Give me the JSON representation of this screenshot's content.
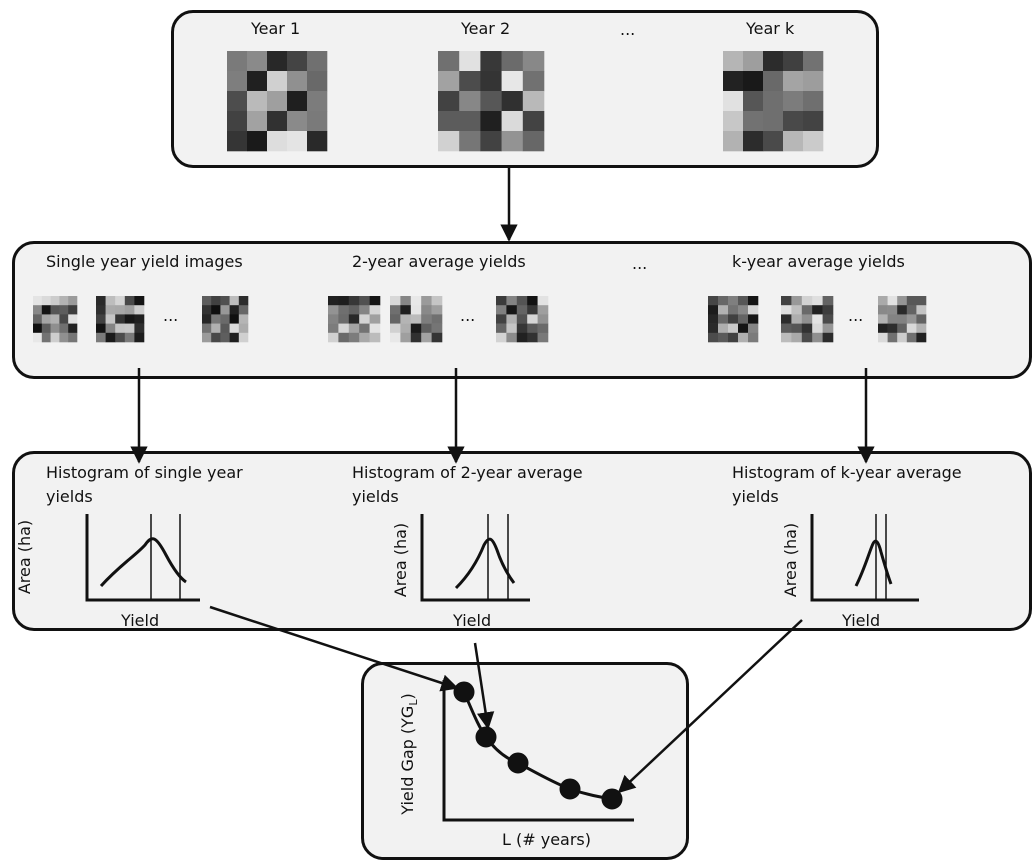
{
  "top": {
    "years": [
      "Year 1",
      "Year 2",
      "Year k"
    ],
    "ellipsis": "..."
  },
  "middle": {
    "groups": [
      "Single year yield images",
      "2-year average yields",
      "k-year average yields"
    ],
    "ellipsis": "..."
  },
  "histograms": {
    "titles": [
      [
        "Histogram of single year",
        "yields"
      ],
      [
        "Histogram of 2-year average",
        "yields"
      ],
      [
        "Histogram of k-year average",
        "yields"
      ]
    ],
    "ylabel": "Area (ha)",
    "xlabel": "Yield"
  },
  "bottom": {
    "ylabel": "Yield Gap (YG",
    "ylabel_sub": "L",
    "ylabel_end": ")",
    "xlabel": "L (# years)"
  },
  "colors": {
    "panel": "#f2f2f2",
    "stroke": "#111111"
  }
}
